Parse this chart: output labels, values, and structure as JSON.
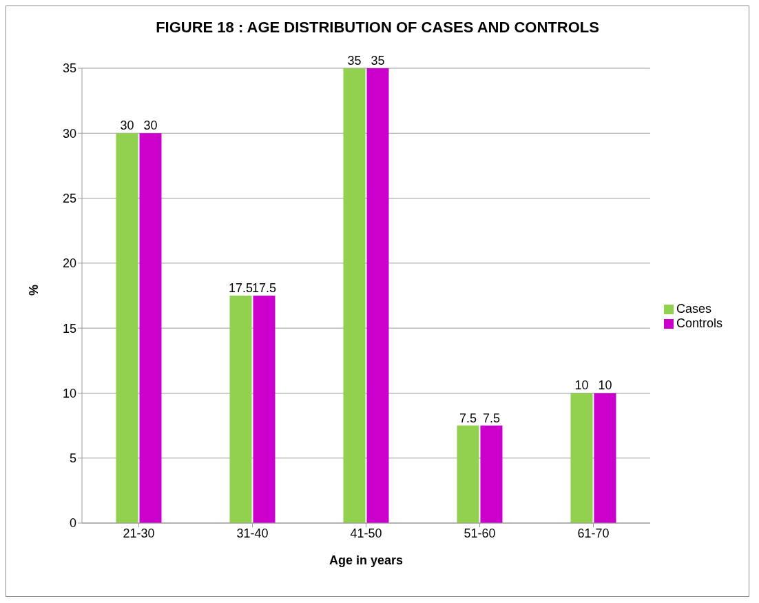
{
  "chart_data": {
    "type": "bar",
    "title": "FIGURE 18 : AGE DISTRIBUTION OF CASES AND CONTROLS",
    "xlabel": "Age in years",
    "ylabel": "%",
    "categories": [
      "21-30",
      "31-40",
      "41-50",
      "51-60",
      "61-70"
    ],
    "series": [
      {
        "name": "Cases",
        "color": "#92d050",
        "values": [
          30,
          17.5,
          35,
          7.5,
          10
        ]
      },
      {
        "name": "Controls",
        "color": "#cc00cc",
        "values": [
          30,
          17.5,
          35,
          7.5,
          10
        ]
      }
    ],
    "ylim": [
      0,
      35
    ],
    "yticks": [
      0,
      5,
      10,
      15,
      20,
      25,
      30,
      35
    ],
    "grid": "y",
    "legend": "right",
    "data_labels": true
  }
}
